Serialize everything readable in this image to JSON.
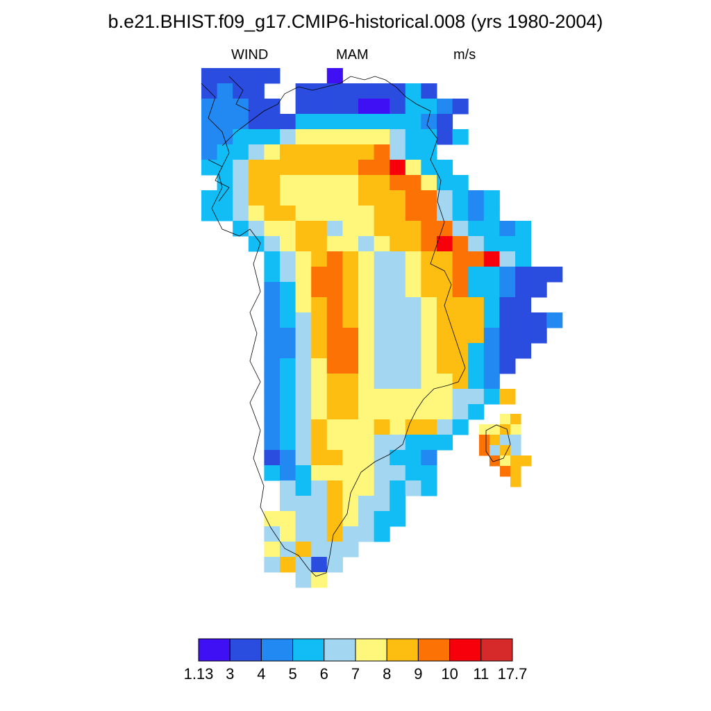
{
  "title": "b.e21.BHIST.f09_g17.CMIP6-historical.008 (yrs 1980-2004)",
  "subtitle": {
    "variable": "WIND",
    "season": "MAM",
    "units": "m/s"
  },
  "colorbar": {
    "labels": [
      "1.13",
      "3",
      "4",
      "5",
      "6",
      "7",
      "8",
      "9",
      "10",
      "11",
      "17.7"
    ],
    "colors": [
      "#4010f5",
      "#2a4de0",
      "#2288f2",
      "#12bdf5",
      "#a3d6f1",
      "#fff67c",
      "#fdbe11",
      "#fd7205",
      "#f7000b",
      "#d62a2a"
    ]
  },
  "legend_note": "color classes index 0-9 map to colorbar.colors"
}
